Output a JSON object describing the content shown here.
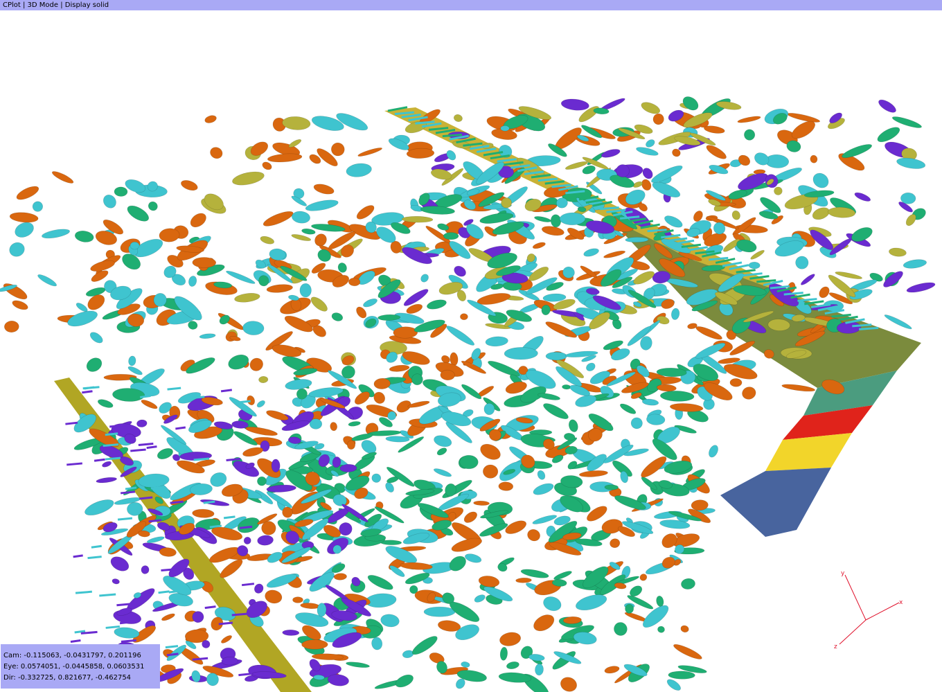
{
  "window": {
    "title": "CPlot | 3D Mode | Display solid"
  },
  "camera_info": {
    "cam": "Cam: -0.115063, -0.0431797, 0.201196",
    "eye": "Eye: 0.0574051, -0.0445858, 0.0603531",
    "dir": "Dir: -0.332725, 0.821677, -0.462754"
  },
  "axis_triad": {
    "x_label": "x",
    "y_label": "y",
    "z_label": "z",
    "color": "#e0112b"
  },
  "colors": {
    "orange": "#d9670f",
    "cyan": "#3fc4cf",
    "green": "#1fae72",
    "purple": "#6a2bd0",
    "olive": "#b5b23c",
    "red": "#e0231b",
    "yellow": "#f2d52a",
    "blue": "#48649e",
    "panel": "#a9a9f5"
  }
}
